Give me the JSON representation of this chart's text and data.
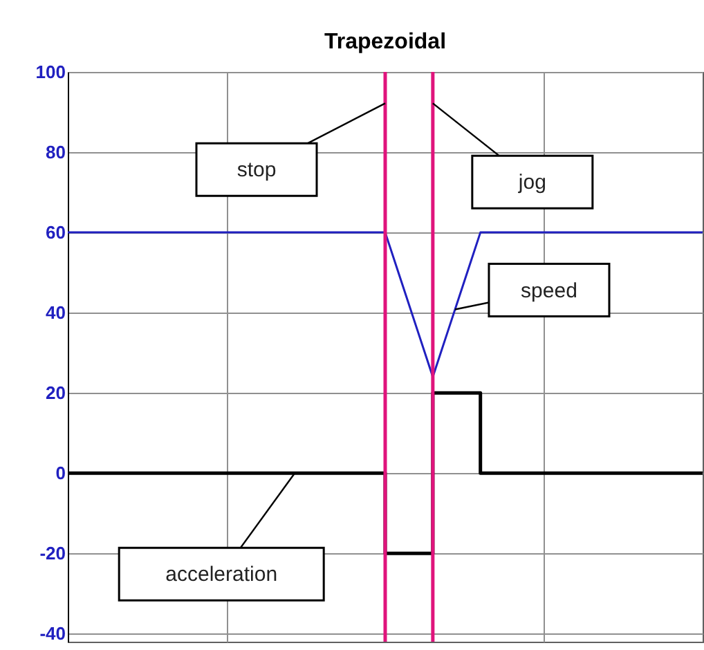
{
  "chart_data": {
    "type": "line",
    "title": "Trapezoidal",
    "categories": [
      null,
      null,
      null,
      null,
      null,
      null,
      null,
      null,
      null,
      null,
      null,
      null,
      null,
      null,
      null,
      null,
      null,
      null,
      null,
      null,
      null,
      null,
      null,
      null,
      null,
      null,
      null,
      null,
      null,
      null,
      null,
      null,
      null,
      null,
      null,
      null,
      null,
      null,
      null,
      null,
      null
    ],
    "ylim": [
      -42,
      100
    ],
    "yticks": [
      -40,
      -20,
      0,
      20,
      40,
      60,
      80,
      100
    ],
    "grid": true,
    "series": [
      {
        "name": "speed",
        "color": "#2020c0",
        "values": [
          60,
          60,
          60,
          60,
          60,
          60,
          60,
          60,
          60,
          60,
          60,
          60,
          60,
          60,
          60,
          60,
          60,
          60,
          60,
          60,
          60,
          48,
          36,
          24,
          36,
          48,
          60,
          60,
          60,
          60,
          60,
          60,
          60,
          60,
          60,
          60,
          60,
          60,
          60,
          60,
          60
        ]
      },
      {
        "name": "acceleration",
        "type": "step",
        "color": "#000000",
        "values": [
          0,
          0,
          0,
          0,
          0,
          0,
          0,
          0,
          0,
          0,
          0,
          0,
          0,
          0,
          0,
          0,
          0,
          0,
          0,
          0,
          -20,
          -20,
          -20,
          20,
          20,
          20,
          0,
          0,
          0,
          0,
          0,
          0,
          0,
          0,
          0,
          0,
          0,
          0,
          0,
          0,
          0
        ]
      }
    ],
    "annotations": [
      "stop",
      "jog"
    ]
  }
}
